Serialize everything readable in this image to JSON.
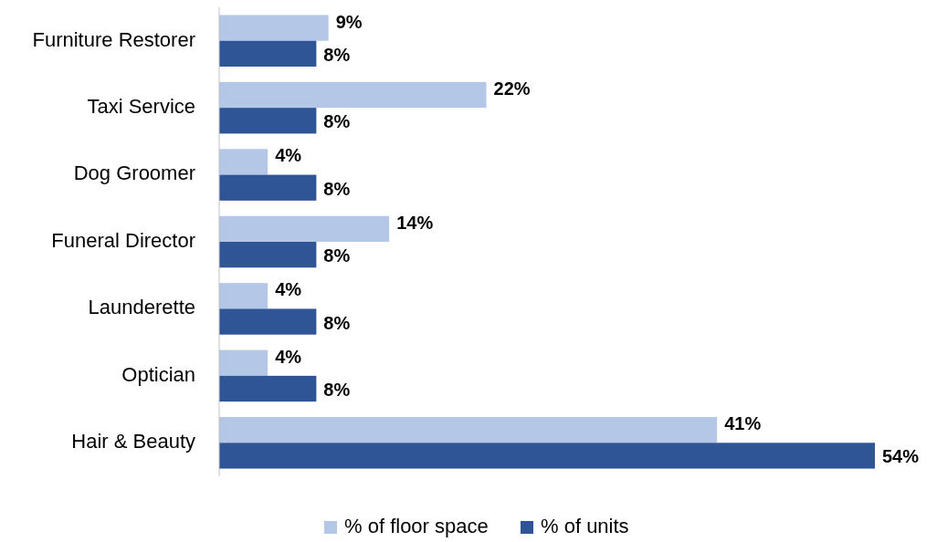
{
  "chart_data": {
    "type": "bar",
    "orientation": "horizontal",
    "categories": [
      "Furniture Restorer",
      "Taxi Service",
      "Dog Groomer",
      "Funeral Director",
      "Launderette",
      "Optician",
      "Hair & Beauty"
    ],
    "series": [
      {
        "name": "% of floor space",
        "color": "#b4c7e7",
        "values": [
          9,
          22,
          4,
          14,
          4,
          4,
          41
        ],
        "value_labels": [
          "9%",
          "22%",
          "4%",
          "14%",
          "4%",
          "4%",
          "41%"
        ]
      },
      {
        "name": "% of units",
        "color": "#2f5597",
        "values": [
          8,
          8,
          8,
          8,
          8,
          8,
          54
        ],
        "value_labels": [
          "8%",
          "8%",
          "8%",
          "8%",
          "8%",
          "8%",
          "54%"
        ]
      }
    ],
    "legend": "bottom",
    "grid": false
  }
}
